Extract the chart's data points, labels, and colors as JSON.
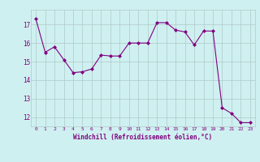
{
  "x": [
    0,
    1,
    2,
    3,
    4,
    5,
    6,
    7,
    8,
    9,
    10,
    11,
    12,
    13,
    14,
    15,
    16,
    17,
    18,
    19,
    20,
    21,
    22,
    23
  ],
  "y": [
    17.3,
    15.5,
    15.8,
    15.1,
    14.4,
    14.45,
    14.6,
    15.35,
    15.3,
    15.3,
    16.0,
    16.0,
    16.0,
    17.1,
    17.1,
    16.7,
    16.6,
    15.9,
    16.65,
    16.65,
    12.5,
    12.2,
    11.7,
    11.7
  ],
  "line_color": "#800080",
  "marker": "D",
  "marker_size": 2,
  "bg_color": "#cff0f0",
  "grid_color": "#b0c8c8",
  "xlabel": "Windchill (Refroidissement éolien,°C)",
  "xlabel_color": "#800080",
  "tick_color": "#800080",
  "ylim": [
    11.5,
    17.8
  ],
  "xlim": [
    -0.5,
    23.5
  ],
  "yticks": [
    12,
    13,
    14,
    15,
    16,
    17
  ],
  "xticks": [
    0,
    1,
    2,
    3,
    4,
    5,
    6,
    7,
    8,
    9,
    10,
    11,
    12,
    13,
    14,
    15,
    16,
    17,
    18,
    19,
    20,
    21,
    22,
    23
  ]
}
